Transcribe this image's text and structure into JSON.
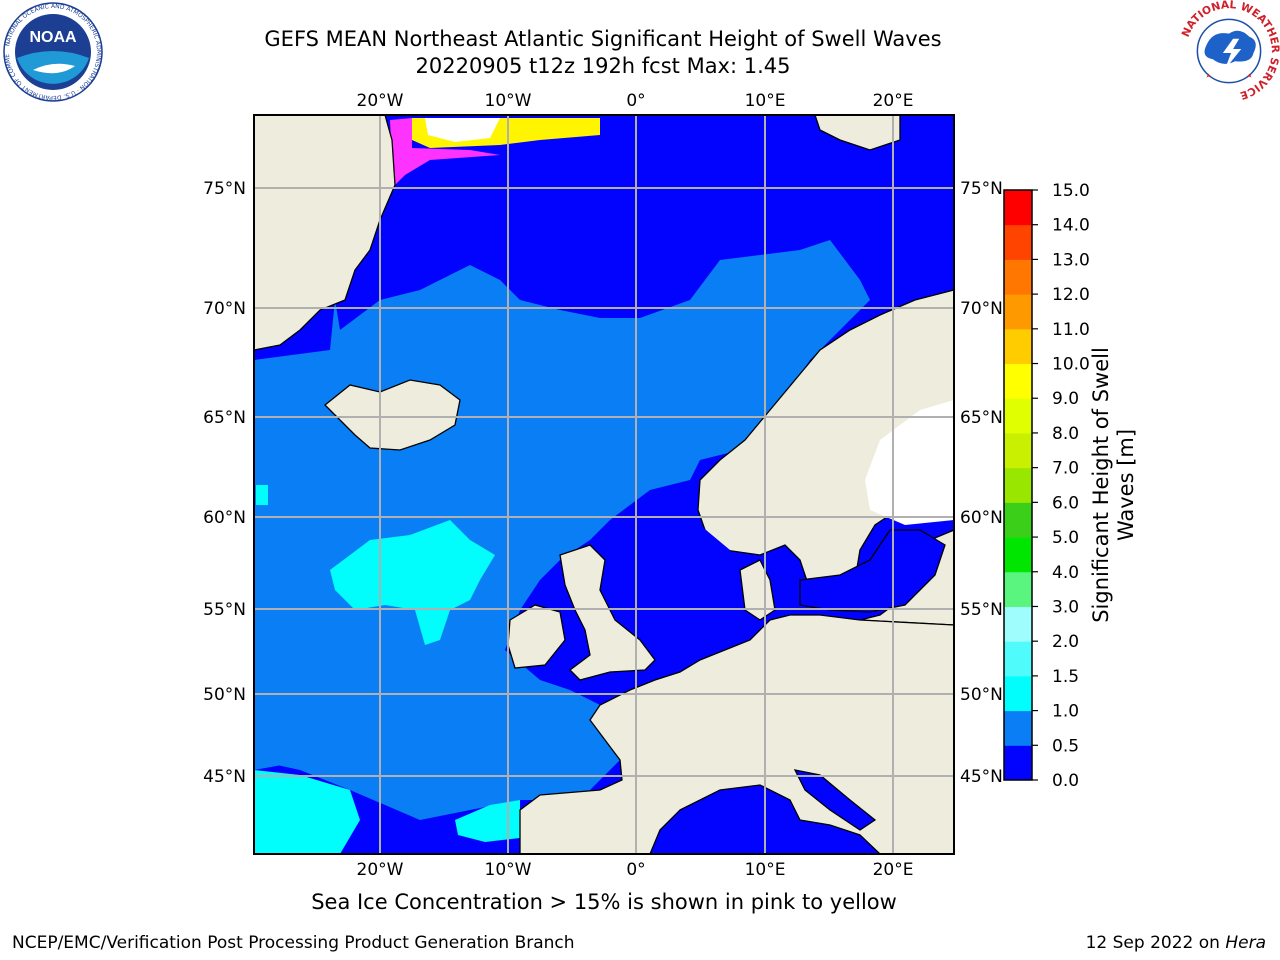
{
  "header": {
    "title": "GEFS MEAN Northeast Atlantic Significant Height of Swell Waves",
    "subtitle": "20220905 t12z 192h fcst   Max: 1.45"
  },
  "map": {
    "lon_labels": [
      "20°W",
      "10°W",
      "0°",
      "10°E",
      "20°E"
    ],
    "lat_labels": [
      "75°N",
      "70°N",
      "65°N",
      "60°N",
      "55°N",
      "50°N",
      "45°N"
    ],
    "extent": {
      "lon": [
        -30,
        25
      ],
      "lat": [
        41,
        78
      ]
    },
    "colors": {
      "land": "#eeecdc",
      "swell_0_05": "#0202ff",
      "swell_05_10": "#0a7ff5",
      "swell_10_15": "#02fdfd",
      "ice_pink": "#ff33ff",
      "ice_yellow": "#fff500",
      "grid": "#b0b0b0"
    }
  },
  "colorbar": {
    "label_line1": "Significant Height of Swell",
    "label_line2": "Waves [m]",
    "ticks": [
      "0.0",
      "0.5",
      "1.0",
      "1.5",
      "2.0",
      "3.0",
      "4.0",
      "5.0",
      "6.0",
      "7.0",
      "8.0",
      "9.0",
      "10.0",
      "11.0",
      "12.0",
      "13.0",
      "14.0",
      "15.0"
    ],
    "colors": [
      "#0202ff",
      "#0a7ff5",
      "#02fdfd",
      "#4ffbfb",
      "#a0fdfd",
      "#5af57f",
      "#00e600",
      "#3ccf1a",
      "#99e600",
      "#c8f000",
      "#e0ff00",
      "#ffff00",
      "#ffcc00",
      "#ff9900",
      "#ff7700",
      "#ff4400",
      "#ff0000"
    ]
  },
  "notes": {
    "ice": "Sea Ice Concentration > 15% is shown in pink to yellow"
  },
  "footer": {
    "left": "NCEP/EMC/Verification Post Processing Product Generation Branch",
    "date": "12 Sep 2022 on",
    "host": "Hera"
  },
  "logos": {
    "noaa_text": "NOAA",
    "noaa_ring": "NATIONAL OCEANIC AND ATMOSPHERIC ADMINISTRATION · U.S. DEPARTMENT OF COMMERCE",
    "nws_ring": "NATIONAL WEATHER SERVICE"
  }
}
